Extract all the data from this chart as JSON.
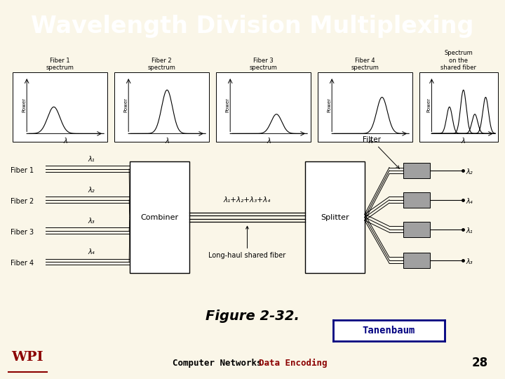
{
  "title": "Wavelength Division Multiplexing",
  "title_bg": "#8B0000",
  "title_color": "#FFFFFF",
  "body_bg": "#FAF6E8",
  "footer_bg": "#B8B8B8",
  "footer_text": "Computer Networks",
  "footer_text2": "Data Encoding",
  "footer_text_color": "#000000",
  "footer_text2_color": "#8B0000",
  "page_number": "28",
  "figure_caption": "Figure 2-32.",
  "tanenbaum_label": "Tanenbaum",
  "tanenbaum_color": "#000080",
  "fiber_labels": [
    "Fiber 1",
    "Fiber 2",
    "Fiber 3",
    "Fiber 4"
  ],
  "spectrum_titles": [
    "Fiber 1\nspectrum",
    "Fiber 2\nspectrum",
    "Fiber 3\nspectrum",
    "Fiber 4\nspectrum",
    "Spectrum\non the\nshared fiber"
  ],
  "combiner_label": "Combiner",
  "splitter_label": "Splitter",
  "shared_fiber_label": "λ₁+λ₂+λ₃+λ₄",
  "long_haul_label": "Long-haul shared fiber",
  "filter_label": "Filter",
  "lambda_labels": [
    "λ₁",
    "λ₂",
    "λ₃",
    "λ₄"
  ],
  "output_lambda_order": [
    "λ₂",
    "λ₄",
    "λ₁",
    "λ₃"
  ]
}
